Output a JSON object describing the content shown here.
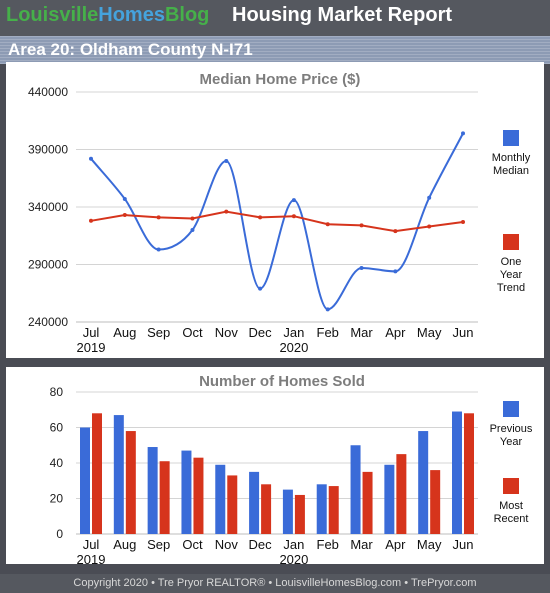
{
  "header": {
    "brand_part1": "Louisville",
    "brand_part2": "Homes",
    "brand_part3": "Blog",
    "report_title": "Housing Market Report"
  },
  "area_title": "Area 20: Oldham County N-I71",
  "footer": "Copyright 2020 • Tre Pryor REALTOR® • LouisvilleHomesBlog.com • TrePryor.com",
  "colors": {
    "blue": "#3a6bd8",
    "red": "#d6341c",
    "bg": "#4a4c54"
  },
  "chart_data": [
    {
      "type": "line",
      "title": "Median Home Price ($)",
      "categories": [
        "Jul",
        "Aug",
        "Sep",
        "Oct",
        "Nov",
        "Dec",
        "Jan",
        "Feb",
        "Mar",
        "Apr",
        "May",
        "Jun"
      ],
      "year_labels": [
        "2019",
        "",
        "",
        "",
        "",
        "",
        "2020",
        "",
        "",
        "",
        "",
        ""
      ],
      "ylim": [
        240000,
        440000
      ],
      "yticks": [
        "440000",
        "390000",
        "340000",
        "290000",
        "240000"
      ],
      "series": [
        {
          "name": "Monthly Median",
          "legend_lines": [
            "Monthly",
            "Median"
          ],
          "color": "#3a6bd8",
          "smooth": true,
          "values": [
            382000,
            347000,
            303000,
            320000,
            380000,
            269000,
            346000,
            251000,
            287000,
            284000,
            348000,
            404000
          ]
        },
        {
          "name": "One Year Trend",
          "legend_lines": [
            "One",
            "Year",
            "Trend"
          ],
          "color": "#d6341c",
          "smooth": false,
          "values": [
            328000,
            333000,
            331000,
            330000,
            336000,
            331000,
            332000,
            325000,
            324000,
            319000,
            323000,
            327000
          ]
        }
      ]
    },
    {
      "type": "bar",
      "title": "Number of Homes Sold",
      "categories": [
        "Jul",
        "Aug",
        "Sep",
        "Oct",
        "Nov",
        "Dec",
        "Jan",
        "Feb",
        "Mar",
        "Apr",
        "May",
        "Jun"
      ],
      "year_labels": [
        "2019",
        "",
        "",
        "",
        "",
        "",
        "2020",
        "",
        "",
        "",
        "",
        ""
      ],
      "ylim": [
        0,
        80
      ],
      "yticks": [
        "80",
        "60",
        "40",
        "20",
        "0"
      ],
      "series": [
        {
          "name": "Previous Year",
          "legend_lines": [
            "Previous",
            "Year"
          ],
          "color": "#3a6bd8",
          "values": [
            60,
            67,
            49,
            47,
            39,
            35,
            25,
            28,
            50,
            39,
            58,
            69
          ]
        },
        {
          "name": "Most Recent",
          "legend_lines": [
            "Most",
            "Recent"
          ],
          "color": "#d6341c",
          "values": [
            68,
            58,
            41,
            43,
            33,
            28,
            22,
            27,
            35,
            45,
            36,
            68
          ]
        }
      ]
    }
  ]
}
